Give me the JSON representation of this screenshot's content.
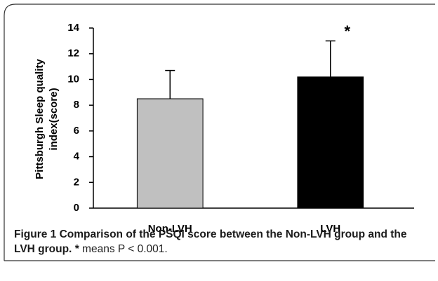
{
  "chart_data": {
    "type": "bar",
    "ylabel": [
      "Pittsburgh Sleep quality",
      "index(score)"
    ],
    "categories": [
      "Non-LVH",
      "LVH"
    ],
    "values": [
      8.5,
      10.2
    ],
    "errors": [
      2.2,
      2.8
    ],
    "colors": [
      "#c0c0c0",
      "#000000"
    ],
    "annotation": {
      "text": "*",
      "category": 1
    },
    "ylim": [
      0,
      14
    ],
    "yticks": [
      0,
      2,
      4,
      6,
      8,
      10,
      12,
      14
    ],
    "grid": false
  },
  "caption": {
    "bold": "Figure 1 Comparison of the PSQI score between the Non-LVH group and the LVH group.",
    "star": "*",
    "rest": " means P < 0.001."
  }
}
